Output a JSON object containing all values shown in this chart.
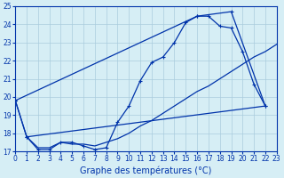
{
  "xlabel": "Graphe des températures (°C)",
  "background_color": "#d6eef5",
  "grid_color": "#aaccdd",
  "line_color": "#0033aa",
  "xlim": [
    0,
    23
  ],
  "ylim": [
    17,
    25
  ],
  "xticks": [
    0,
    1,
    2,
    3,
    4,
    5,
    6,
    7,
    8,
    9,
    10,
    11,
    12,
    13,
    14,
    15,
    16,
    17,
    18,
    19,
    20,
    21,
    22,
    23
  ],
  "yticks": [
    17,
    18,
    19,
    20,
    21,
    22,
    23,
    24,
    25
  ],
  "curve1_x": [
    0,
    1,
    2,
    3,
    4,
    5,
    6,
    7,
    8,
    9,
    10,
    11,
    12,
    13,
    14,
    15,
    16,
    17,
    18,
    19,
    20,
    21,
    22
  ],
  "curve1_y": [
    19.8,
    17.8,
    17.1,
    17.1,
    17.5,
    17.5,
    17.3,
    17.1,
    17.2,
    18.6,
    19.5,
    20.9,
    21.9,
    22.2,
    23.0,
    24.1,
    24.45,
    24.45,
    23.9,
    23.8,
    22.5,
    20.7,
    19.5
  ],
  "curve2_x": [
    1,
    2,
    3,
    4,
    5,
    6,
    7,
    8,
    9,
    10,
    11,
    12,
    13,
    14,
    15,
    16,
    17,
    18,
    19,
    20,
    21,
    22,
    23
  ],
  "curve2_y": [
    17.8,
    17.2,
    17.2,
    17.5,
    17.4,
    17.4,
    17.3,
    17.5,
    17.7,
    18.0,
    18.4,
    18.7,
    19.1,
    19.5,
    19.9,
    20.3,
    20.6,
    21.0,
    21.4,
    21.8,
    22.2,
    22.5,
    22.9
  ],
  "poly_x": [
    0,
    16,
    19,
    22,
    1,
    0
  ],
  "poly_y": [
    19.8,
    24.45,
    24.7,
    19.5,
    17.8,
    19.8
  ],
  "xlabel_fontsize": 7,
  "tick_fontsize": 5.5
}
